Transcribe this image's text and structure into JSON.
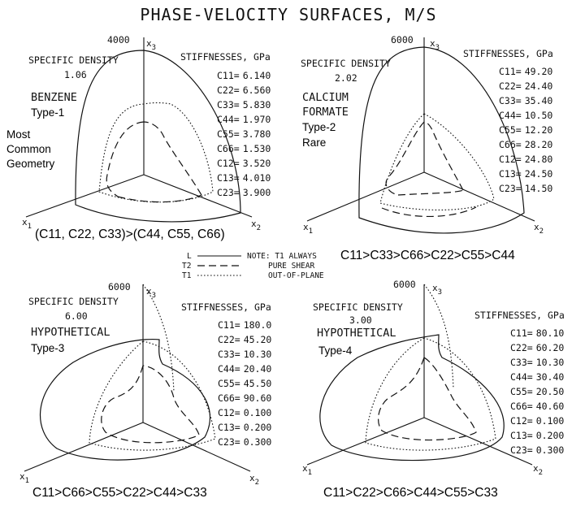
{
  "title": "PHASE-VELOCITY SURFACES, M/S",
  "axis_labels": {
    "x3": "x",
    "x3_sub": "3",
    "x1": "x",
    "x1_sub": "1",
    "x2": "x",
    "x2_sub": "2"
  },
  "legend": {
    "L": "L",
    "T2": "T2",
    "T1": "T1",
    "note": "NOTE: T1 ALWAYS",
    "pure": "PURE SHEAR",
    "out": "OUT-OF-PLANE"
  },
  "panels": [
    {
      "scale": "4000",
      "density_label": "SPECIFIC DENSITY",
      "density": "1.06",
      "name_lines": [
        "BENZENE"
      ],
      "type": "Type-1",
      "note_lines": [
        "Most",
        "Common",
        "Geometry"
      ],
      "stiff_title": "STIFFNESSES, GPa",
      "stiffnesses": [
        {
          "label": "C11=",
          "value": "6.140"
        },
        {
          "label": "C22=",
          "value": "6.560"
        },
        {
          "label": "C33=",
          "value": "5.830"
        },
        {
          "label": "C44=",
          "value": "1.970"
        },
        {
          "label": "C55=",
          "value": "3.780"
        },
        {
          "label": "C66=",
          "value": "1.530"
        },
        {
          "label": "C12=",
          "value": "3.520"
        },
        {
          "label": "C13=",
          "value": "4.010"
        },
        {
          "label": "C23=",
          "value": "3.900"
        }
      ],
      "ordering": "(C11, C22, C33)>(C44, C55, C66)"
    },
    {
      "scale": "6000",
      "density_label": "SPECIFIC DENSITY",
      "density": "2.02",
      "name_lines": [
        "CALCIUM",
        "FORMATE"
      ],
      "type": "Type-2",
      "note_lines": [
        "Rare"
      ],
      "stiff_title": "STIFFNESSES, GPa",
      "stiffnesses": [
        {
          "label": "C11=",
          "value": "49.20"
        },
        {
          "label": "C22=",
          "value": "24.40"
        },
        {
          "label": "C33=",
          "value": "35.40"
        },
        {
          "label": "C44=",
          "value": "10.50"
        },
        {
          "label": "C55=",
          "value": "12.20"
        },
        {
          "label": "C66=",
          "value": "28.20"
        },
        {
          "label": "C12=",
          "value": "24.80"
        },
        {
          "label": "C13=",
          "value": "24.50"
        },
        {
          "label": "C23=",
          "value": "14.50"
        }
      ],
      "ordering": "C11>C33>C66>C22>C55>C44"
    },
    {
      "scale": "6000",
      "density_label": "SPECIFIC DENSITY",
      "density": "6.00",
      "name_lines": [
        "HYPOTHETICAL"
      ],
      "type": "Type-3",
      "note_lines": [],
      "stiff_title": "STIFFNESSES, GPa",
      "stiffnesses": [
        {
          "label": "C11=",
          "value": "180.0"
        },
        {
          "label": "C22=",
          "value": "45.20"
        },
        {
          "label": "C33=",
          "value": "10.30"
        },
        {
          "label": "C44=",
          "value": "20.40"
        },
        {
          "label": "C55=",
          "value": "45.50"
        },
        {
          "label": "C66=",
          "value": "90.60"
        },
        {
          "label": "C12=",
          "value": "0.100"
        },
        {
          "label": "C13=",
          "value": "0.200"
        },
        {
          "label": "C23=",
          "value": "0.300"
        }
      ],
      "ordering": "C11>C66>C55>C22>C44>C33"
    },
    {
      "scale": "6000",
      "density_label": "SPECIFIC DENSITY",
      "density": "3.00",
      "name_lines": [
        "HYPOTHETICAL"
      ],
      "type": "Type-4",
      "note_lines": [],
      "stiff_title": "STIFFNESSES, GPa",
      "stiffnesses": [
        {
          "label": "C11=",
          "value": "80.10"
        },
        {
          "label": "C22=",
          "value": "60.20"
        },
        {
          "label": "C33=",
          "value": "10.30"
        },
        {
          "label": "C44=",
          "value": "30.40"
        },
        {
          "label": "C55=",
          "value": "20.50"
        },
        {
          "label": "C66=",
          "value": "40.60"
        },
        {
          "label": "C12=",
          "value": "0.100"
        },
        {
          "label": "C13=",
          "value": "0.200"
        },
        {
          "label": "C23=",
          "value": "0.300"
        }
      ],
      "ordering": "C11>C22>C66>C44>C55>C33"
    }
  ]
}
